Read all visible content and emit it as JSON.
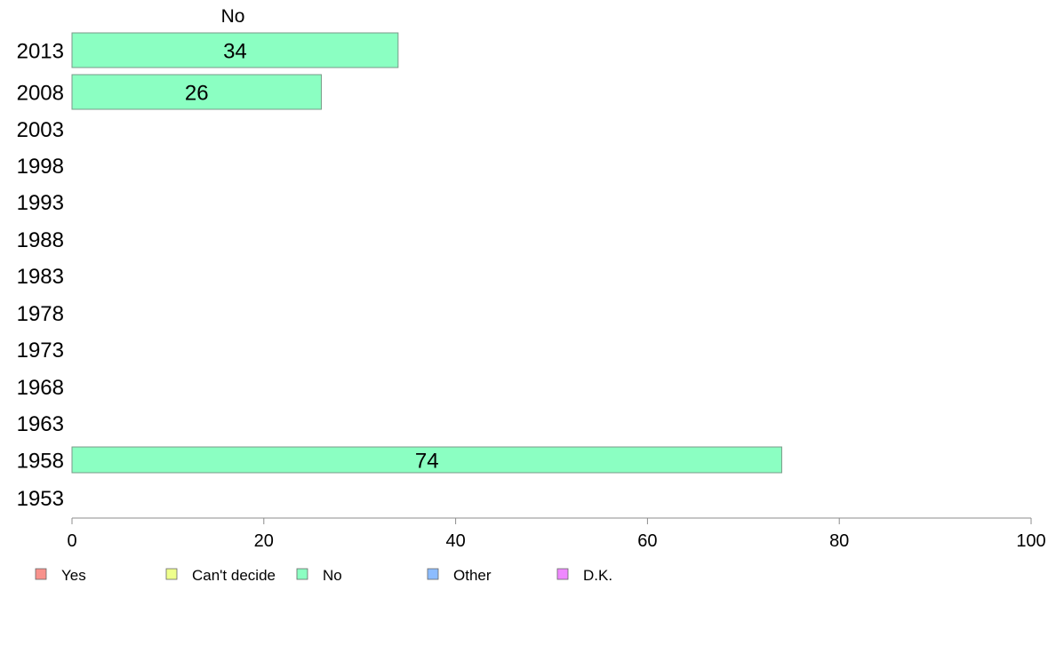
{
  "chart_data": {
    "type": "bar",
    "orientation": "horizontal",
    "panel_title": "No",
    "categories": [
      "2013",
      "2008",
      "2003",
      "1998",
      "1993",
      "1988",
      "1983",
      "1978",
      "1973",
      "1968",
      "1963",
      "1958",
      "1953"
    ],
    "series": [
      {
        "name": "No",
        "color": "#8bffc2",
        "values": [
          34,
          26,
          null,
          null,
          null,
          null,
          null,
          null,
          null,
          null,
          null,
          74,
          null
        ],
        "data_labels": [
          "34",
          "26",
          "",
          "",
          "",
          "",
          "",
          "",
          "",
          "",
          "",
          "74",
          ""
        ]
      }
    ],
    "xlim": [
      0,
      100
    ],
    "x_ticks": [
      0,
      20,
      40,
      60,
      80,
      100
    ],
    "x_tick_labels": [
      "0",
      "20",
      "40",
      "60",
      "80",
      "100"
    ],
    "grid": false,
    "legend_position": "bottom",
    "legend": [
      {
        "label": "Yes",
        "color": "#f8928c"
      },
      {
        "label": "Can't decide",
        "color": "#eeff8c"
      },
      {
        "label": "No",
        "color": "#8bffc2"
      },
      {
        "label": "Other",
        "color": "#8cbcff"
      },
      {
        "label": "D.K.",
        "color": "#ef88ff"
      }
    ]
  }
}
